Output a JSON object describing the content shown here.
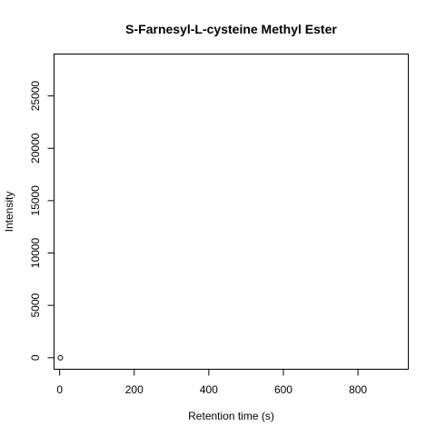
{
  "chart_data": {
    "type": "scatter",
    "title": "S-Farnesyl-L-cysteine Methyl Ester",
    "xlabel": "Retention time (s)",
    "ylabel": "Intensity",
    "xlim": [
      -15,
      935
    ],
    "ylim": [
      -1100,
      29000
    ],
    "xticks": [
      0,
      200,
      400,
      600,
      800
    ],
    "yticks": [
      0,
      5000,
      10000,
      15000,
      20000,
      25000
    ],
    "xtick_labels": [
      "0",
      "200",
      "400",
      "600",
      "800"
    ],
    "ytick_labels": [
      "0",
      "5000",
      "10000",
      "15000",
      "20000",
      "25000"
    ],
    "grid": false,
    "series": [
      {
        "marker": "open-circle",
        "color": "#000000",
        "points": [
          {
            "x": 2,
            "y": 0
          }
        ]
      }
    ]
  }
}
